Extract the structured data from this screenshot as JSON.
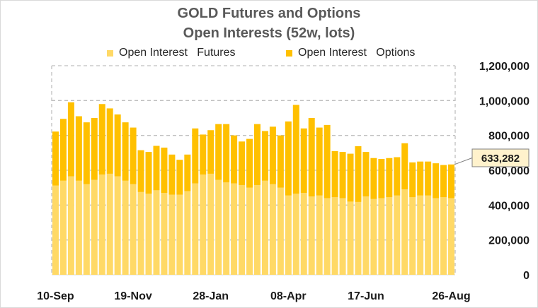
{
  "title_line1": "GOLD Futures and Options",
  "title_line2": "Open Interests (52w, lots)",
  "legend": [
    {
      "label": "Open Interest   Futures",
      "color": "#FFD966"
    },
    {
      "label": "Open Interest   Options",
      "color": "#FFC000"
    }
  ],
  "callout": "633,282",
  "chart_data": {
    "type": "bar",
    "stacked": true,
    "title": "GOLD Futures and Options Open Interests (52w, lots)",
    "x_tick_labels": [
      "10-Sep",
      "19-Nov",
      "28-Jan",
      "08-Apr",
      "17-Jun",
      "26-Aug"
    ],
    "x_tick_index": [
      0,
      10,
      20,
      30,
      40,
      50
    ],
    "y_tick_labels": [
      "0",
      "200,000",
      "400,000",
      "600,000",
      "800,000",
      "1,000,000",
      "1,200,000"
    ],
    "ylim": [
      0,
      1200000
    ],
    "grid": true,
    "legend_position": "top",
    "series": [
      {
        "name": "Open Interest   Futures",
        "values": [
          512000,
          540000,
          565000,
          540000,
          520000,
          545000,
          575000,
          580000,
          565000,
          540000,
          520000,
          475000,
          465000,
          485000,
          470000,
          460000,
          460000,
          480000,
          525000,
          575000,
          580000,
          545000,
          530000,
          525000,
          515000,
          500000,
          515000,
          540000,
          520000,
          500000,
          455000,
          465000,
          470000,
          450000,
          455000,
          440000,
          445000,
          440000,
          420000,
          418000,
          450000,
          435000,
          440000,
          445000,
          455000,
          490000,
          445000,
          455000,
          455000,
          440000,
          445000,
          440000
        ]
      },
      {
        "name": "Open Interest   Options",
        "values": [
          310000,
          355000,
          425000,
          370000,
          355000,
          355000,
          405000,
          375000,
          355000,
          335000,
          325000,
          240000,
          240000,
          255000,
          260000,
          230000,
          200000,
          210000,
          315000,
          230000,
          250000,
          320000,
          335000,
          275000,
          250000,
          280000,
          350000,
          285000,
          330000,
          300000,
          425000,
          510000,
          370000,
          450000,
          390000,
          420000,
          265000,
          265000,
          275000,
          320000,
          255000,
          235000,
          225000,
          225000,
          220000,
          265000,
          200000,
          195000,
          195000,
          200000,
          185000,
          193282
        ]
      }
    ]
  }
}
